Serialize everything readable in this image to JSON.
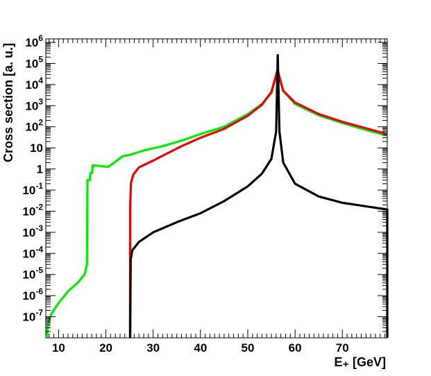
{
  "chart_data": {
    "type": "line",
    "xlabel": "E₊ [GeV]",
    "ylabel": "Cross section [a. u.]",
    "xlim": [
      7.3,
      79.5
    ],
    "ylim": [
      1e-08,
      1000000.0
    ],
    "yscale": "log",
    "grid": false,
    "x_ticks": [
      10,
      20,
      30,
      40,
      50,
      60,
      70
    ],
    "y_ticks": [
      {
        "value": 1000000.0,
        "base": "10",
        "exp": "6"
      },
      {
        "value": 100000.0,
        "base": "10",
        "exp": "5"
      },
      {
        "value": 10000.0,
        "base": "10",
        "exp": "4"
      },
      {
        "value": 1000.0,
        "base": "10",
        "exp": "3"
      },
      {
        "value": 100.0,
        "base": "10",
        "exp": "2"
      },
      {
        "value": 10,
        "base": "10",
        "exp": ""
      },
      {
        "value": 1,
        "base": "1",
        "exp": ""
      },
      {
        "value": 0.1,
        "base": "10",
        "exp": "-1"
      },
      {
        "value": 0.01,
        "base": "10",
        "exp": "-2"
      },
      {
        "value": 0.001,
        "base": "10",
        "exp": "-3"
      },
      {
        "value": 0.0001,
        "base": "10",
        "exp": "-4"
      },
      {
        "value": 1e-05,
        "base": "10",
        "exp": "-5"
      },
      {
        "value": 1e-06,
        "base": "10",
        "exp": "-6"
      },
      {
        "value": 1e-07,
        "base": "10",
        "exp": "-7"
      }
    ],
    "series": [
      {
        "color": "#00ee00",
        "points": [
          [
            7.5,
            1e-08
          ],
          [
            7.8,
            5e-08
          ],
          [
            8.5,
            1.4e-07
          ],
          [
            10,
            4.5e-07
          ],
          [
            12,
            1.6e-06
          ],
          [
            14,
            4e-06
          ],
          [
            15.5,
            1e-05
          ],
          [
            16,
            3e-05
          ],
          [
            16.1,
            0.3
          ],
          [
            16.6,
            0.3
          ],
          [
            16.7,
            0.65
          ],
          [
            17.1,
            0.65
          ],
          [
            17.2,
            1.5
          ],
          [
            20.5,
            1.25
          ],
          [
            22,
            2.2
          ],
          [
            23.5,
            4
          ],
          [
            25,
            4.6
          ],
          [
            28,
            7.5
          ],
          [
            32,
            12
          ],
          [
            36,
            22
          ],
          [
            40,
            45
          ],
          [
            45,
            100
          ],
          [
            50,
            400
          ],
          [
            53,
            1200
          ],
          [
            55,
            4000
          ],
          [
            56.3,
            40000
          ],
          [
            57.5,
            5000
          ],
          [
            60,
            1200
          ],
          [
            65,
            350
          ],
          [
            70,
            150
          ],
          [
            75,
            70
          ],
          [
            79.5,
            38
          ]
        ]
      },
      {
        "color": "#ee0000",
        "points": [
          [
            25.1,
            1e-08
          ],
          [
            25.15,
            0.02
          ],
          [
            25.3,
            0.22
          ],
          [
            25.8,
            0.55
          ],
          [
            27,
            1.2
          ],
          [
            30,
            2.5
          ],
          [
            33,
            5.5
          ],
          [
            36,
            12
          ],
          [
            40,
            30
          ],
          [
            45,
            80
          ],
          [
            50,
            330
          ],
          [
            53,
            1100
          ],
          [
            55,
            4500
          ],
          [
            56.3,
            50000
          ],
          [
            57.5,
            5000
          ],
          [
            60,
            1400
          ],
          [
            65,
            400
          ],
          [
            70,
            170
          ],
          [
            75,
            85
          ],
          [
            79.5,
            45
          ]
        ]
      },
      {
        "color": "#000000",
        "points": [
          [
            25.15,
            1e-08
          ],
          [
            25.25,
            5e-05
          ],
          [
            25.6,
            0.00014
          ],
          [
            27,
            0.00035
          ],
          [
            30,
            0.001
          ],
          [
            35,
            0.003
          ],
          [
            40,
            0.008
          ],
          [
            45,
            0.03
          ],
          [
            50,
            0.15
          ],
          [
            53,
            0.6
          ],
          [
            55,
            3
          ],
          [
            56,
            60
          ],
          [
            56.35,
            250000
          ],
          [
            56.7,
            60
          ],
          [
            57.5,
            2
          ],
          [
            60,
            0.2
          ],
          [
            65,
            0.05
          ],
          [
            70,
            0.025
          ],
          [
            75,
            0.017
          ],
          [
            79.5,
            0.012
          ],
          [
            79.5,
            1e-08
          ]
        ]
      }
    ]
  }
}
